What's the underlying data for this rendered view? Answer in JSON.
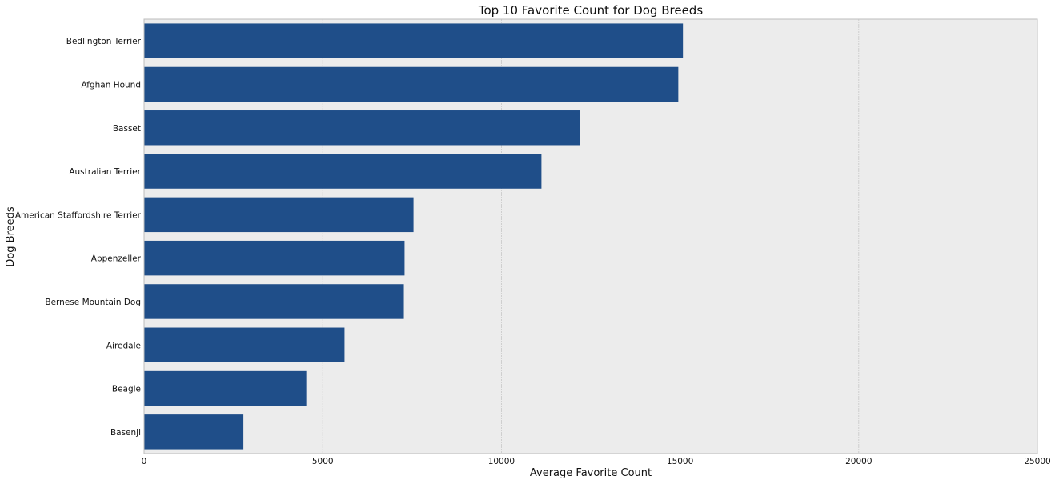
{
  "chart_data": {
    "type": "bar",
    "orientation": "horizontal",
    "title": "Top 10 Favorite Count for Dog Breeds",
    "xlabel": "Average Favorite Count",
    "ylabel": "Dog Breeds",
    "xlim": [
      0,
      25000
    ],
    "xticks": [
      0,
      5000,
      10000,
      15000,
      20000,
      25000
    ],
    "grid": true,
    "categories": [
      "Bedlington Terrier",
      "Afghan Hound",
      "Basset",
      "Australian Terrier",
      "American Staffordshire Terrier",
      "Appenzeller",
      "Bernese Mountain Dog",
      "Airedale",
      "Beagle",
      "Basenji"
    ],
    "values": [
      15080,
      14950,
      12200,
      11120,
      7540,
      7290,
      7270,
      5610,
      4540,
      2780
    ],
    "colors": {
      "bar": "#1f4e89",
      "background": "#ececec",
      "grid": "#c8c8c8",
      "frame": "#bdbdbd"
    }
  }
}
